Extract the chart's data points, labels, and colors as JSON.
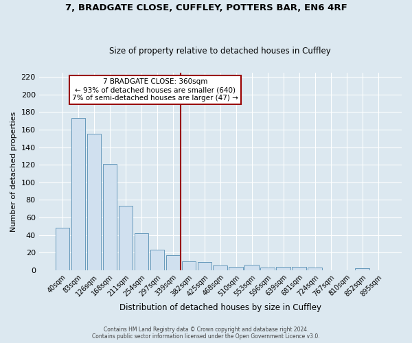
{
  "title1": "7, BRADGATE CLOSE, CUFFLEY, POTTERS BAR, EN6 4RF",
  "title2": "Size of property relative to detached houses in Cuffley",
  "xlabel": "Distribution of detached houses by size in Cuffley",
  "ylabel": "Number of detached properties",
  "bin_labels": [
    "40sqm",
    "83sqm",
    "126sqm",
    "168sqm",
    "211sqm",
    "254sqm",
    "297sqm",
    "339sqm",
    "382sqm",
    "425sqm",
    "468sqm",
    "510sqm",
    "553sqm",
    "596sqm",
    "639sqm",
    "681sqm",
    "724sqm",
    "767sqm",
    "810sqm",
    "852sqm",
    "895sqm"
  ],
  "bar_values": [
    48,
    173,
    155,
    121,
    73,
    42,
    23,
    17,
    10,
    9,
    5,
    4,
    6,
    3,
    4,
    4,
    3,
    0,
    0,
    2,
    0
  ],
  "bar_color": "#d0e0ef",
  "bar_edge_color": "#6699bb",
  "vline_color": "#990000",
  "annotation_title": "7 BRADGATE CLOSE: 360sqm",
  "annotation_line1": "← 93% of detached houses are smaller (640)",
  "annotation_line2": "7% of semi-detached houses are larger (47) →",
  "annotation_box_facecolor": "#ffffff",
  "annotation_box_edgecolor": "#990000",
  "ylim_max": 225,
  "yticks": [
    0,
    20,
    40,
    60,
    80,
    100,
    120,
    140,
    160,
    180,
    200,
    220
  ],
  "background_color": "#dce8f0",
  "grid_color": "#ffffff",
  "footer1": "Contains HM Land Registry data © Crown copyright and database right 2024.",
  "footer2": "Contains public sector information licensed under the Open Government Licence v3.0."
}
